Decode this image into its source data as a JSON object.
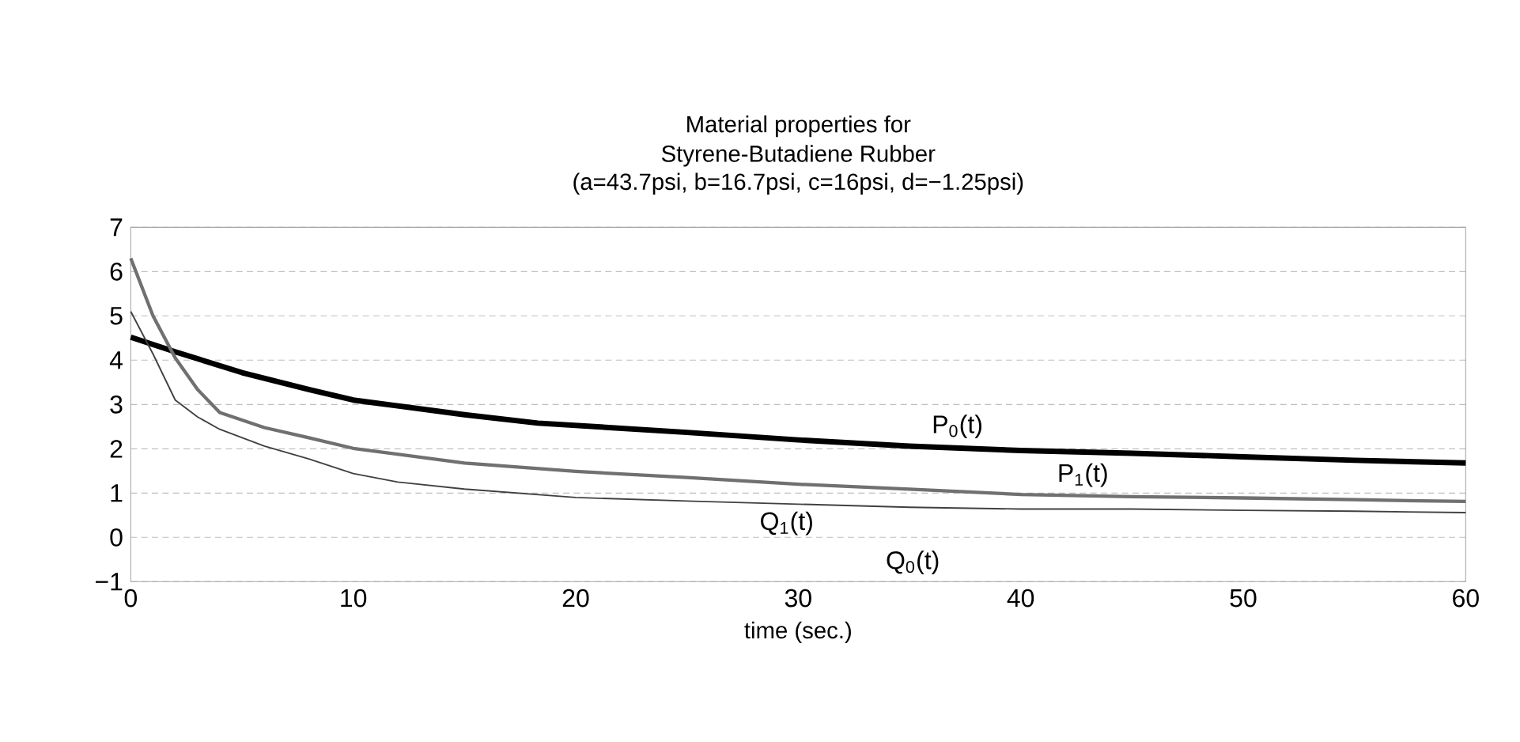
{
  "chart_data": {
    "type": "line",
    "title": "Material properties for Styrene-Butadiene Rubber",
    "subtitle": "(a=43.7psi, b=16.7psi, c=16psi, d=−1.25psi)",
    "xlabel": "time (sec.)",
    "series": [
      {
        "name": "P$_{0}$(t)",
        "color": "#000000",
        "x": [
          0,
          2,
          5,
          8,
          10,
          15,
          18.3,
          25,
          30,
          35,
          40,
          45,
          50,
          55,
          60
        ],
        "values": [
          4.52,
          4.19,
          3.72,
          3.34,
          3.1,
          2.77,
          2.58,
          2.37,
          2.2,
          2.06,
          1.96,
          1.9,
          1.82,
          1.74,
          1.68
        ]
      },
      {
        "name": "P$_{1}$(t)",
        "color": "#707070",
        "x": [
          0,
          1,
          2,
          3,
          4,
          6,
          8,
          10,
          15,
          20,
          25,
          30,
          35,
          40,
          45,
          50,
          55,
          60
        ],
        "values": [
          6.3,
          5.0,
          4.05,
          3.34,
          2.82,
          2.48,
          2.25,
          2.01,
          1.68,
          1.49,
          1.35,
          1.2,
          1.09,
          0.97,
          0.92,
          0.89,
          0.85,
          0.81
        ]
      },
      {
        "name": "Q$_{1}$(t)",
        "color": "#404040",
        "x": [
          0,
          1,
          2,
          3,
          4,
          6,
          8,
          10,
          12,
          15,
          20,
          25,
          30,
          35,
          40,
          45,
          50,
          55,
          60
        ],
        "values": [
          5.1,
          4.14,
          3.1,
          2.72,
          2.44,
          2.06,
          1.77,
          1.44,
          1.25,
          1.09,
          0.9,
          0.82,
          0.75,
          0.68,
          0.64,
          0.64,
          0.61,
          0.59,
          0.56
        ]
      }
    ],
    "annotations": [
      "Q$_{0}$(t)"
    ],
    "xlim": [
      0,
      60
    ],
    "xticks": [
      0,
      10,
      20,
      30,
      40,
      50,
      60
    ],
    "ylim": [
      -1,
      7
    ],
    "yticks": [
      {
        "value": -1,
        "label": "−1"
      },
      0,
      1,
      2,
      3,
      4,
      5,
      6,
      7
    ],
    "grid": "y",
    "marker": "none",
    "line_style": "solid"
  }
}
